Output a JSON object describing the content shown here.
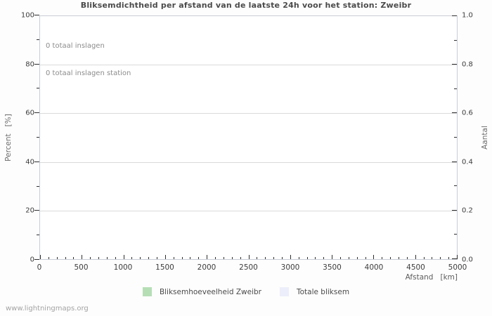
{
  "chart": {
    "title": "Bliksemdichtheid per afstand van de laatste 24h voor het station: Zweibr",
    "annotations": [
      "0 totaal inslagen",
      "0 totaal inslagen station"
    ],
    "footer": "www.lightningmaps.org"
  },
  "axes": {
    "x": {
      "label": "Afstand   [km]",
      "ticks": [
        "0",
        "500",
        "1000",
        "1500",
        "2000",
        "2500",
        "3000",
        "3500",
        "4000",
        "4500",
        "5000"
      ]
    },
    "left": {
      "label": "Percent   [%]",
      "ticks": [
        "100",
        "80",
        "60",
        "40",
        "20",
        "0"
      ]
    },
    "right": {
      "label": "Aantal",
      "ticks": [
        "1.0",
        "0.8",
        "0.6",
        "0.4",
        "0.2",
        "0.0"
      ]
    }
  },
  "legend": {
    "items": [
      {
        "label": "Bliksemhoeveelheid Zweibr",
        "color": "#b5deb5"
      },
      {
        "label": "Totale bliksem",
        "color": "#eceefb"
      }
    ]
  },
  "colors": {
    "gridline": "#dadada",
    "frame": "#c8cdd6",
    "tick": "#2e2e2e"
  },
  "chart_data": {
    "type": "area",
    "title": "Bliksemdichtheid per afstand van de laatste 24h voor het station: Zweibr",
    "xlabel": "Afstand [km]",
    "ylabel_left": "Percent [%]",
    "ylabel_right": "Aantal",
    "xlim": [
      0,
      5000
    ],
    "ylim_left": [
      0,
      100
    ],
    "ylim_right": [
      0.0,
      1.0
    ],
    "x_major_tick_step": 500,
    "x_minor_tick_step": 100,
    "y_major_tick_step": 20,
    "y_minor_tick_step": 10,
    "grid": "horizontal-major-only",
    "legend_position": "bottom-center",
    "series": [
      {
        "name": "Bliksemhoeveelheid Zweibr",
        "color": "#b5deb5",
        "values": []
      },
      {
        "name": "Totale bliksem",
        "color": "#eceefb",
        "values": []
      }
    ],
    "totals": {
      "totaal_inslagen": 0,
      "totaal_inslagen_station": 0
    }
  }
}
